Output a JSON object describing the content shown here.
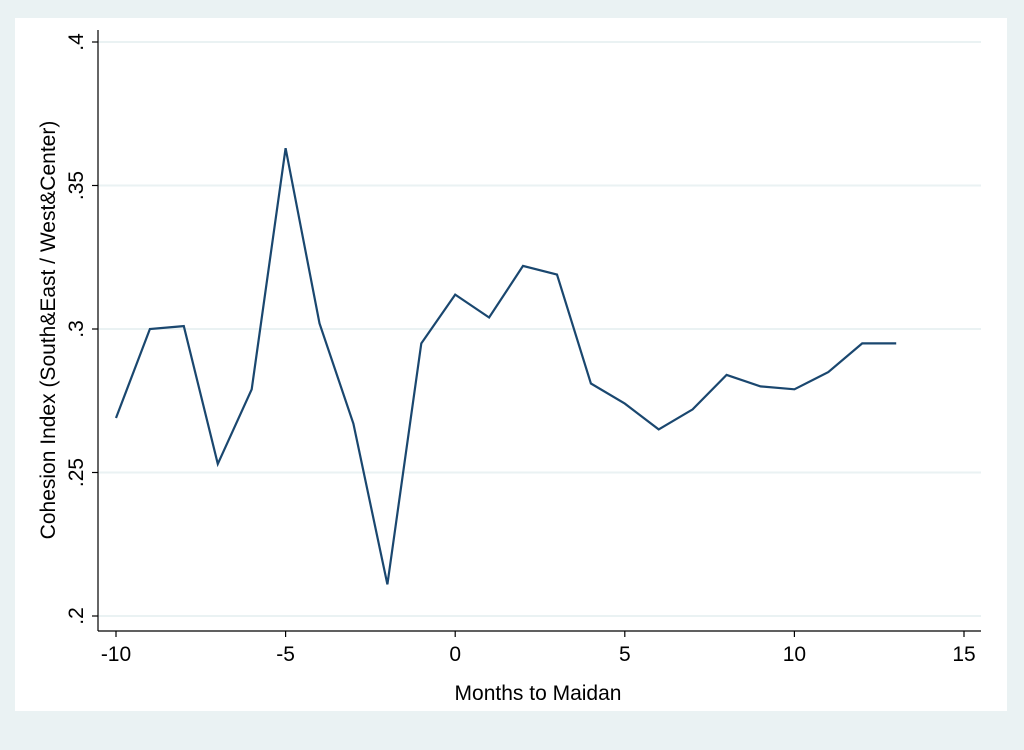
{
  "chart_data": {
    "type": "line",
    "title": "",
    "xlabel": "Months to Maidan",
    "ylabel": "Cohesion Index (South&East / West&Center)",
    "xlim": [
      -10,
      15
    ],
    "ylim": [
      0.2,
      0.4
    ],
    "x_ticks": [
      -10,
      -5,
      0,
      5,
      10,
      15
    ],
    "x_tick_labels": [
      "-10",
      "-5",
      "0",
      "5",
      "10",
      "15"
    ],
    "y_ticks": [
      0.2,
      0.25,
      0.3,
      0.35,
      0.4
    ],
    "y_tick_labels": [
      ".2",
      ".25",
      ".3",
      ".35",
      ".4"
    ],
    "grid": true,
    "legend": "none",
    "series": [
      {
        "x": [
          -10,
          -9,
          -8,
          -7,
          -6,
          -5,
          -4,
          -3,
          -2,
          -1,
          0,
          1,
          2,
          3,
          4,
          5,
          6,
          7,
          8,
          9,
          10,
          11,
          12,
          13
        ],
        "values": [
          0.269,
          0.3,
          0.301,
          0.253,
          0.279,
          0.363,
          0.302,
          0.267,
          0.211,
          0.295,
          0.312,
          0.304,
          0.322,
          0.319,
          0.281,
          0.274,
          0.265,
          0.272,
          0.284,
          0.28,
          0.279,
          0.285,
          0.295,
          0.295
        ],
        "color": "#1a476f"
      }
    ]
  },
  "colors": {
    "outer_background": "#eaf2f3",
    "plot_background": "#ffffff",
    "gridline": "#eaf2f3",
    "axis": "#000000",
    "line": "#1a476f"
  }
}
